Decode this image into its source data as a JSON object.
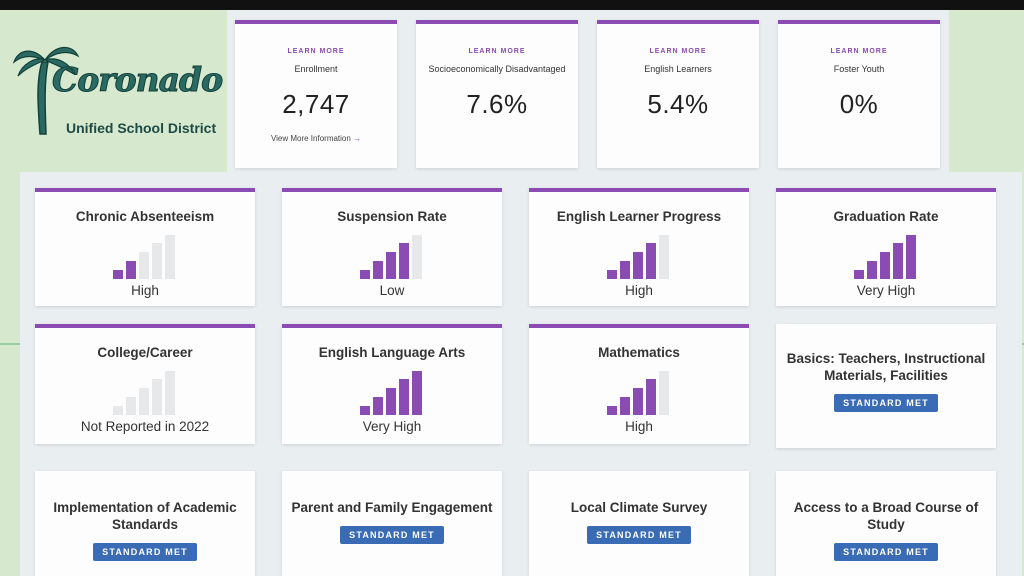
{
  "logo": {
    "script_text": "Coronado",
    "subtitle": "Unified School District"
  },
  "stats": [
    {
      "learn": "LEARN MORE",
      "label": "Enrollment",
      "value": "2,747",
      "link": "View More Information"
    },
    {
      "learn": "LEARN MORE",
      "label": "Socioeconomically Disadvantaged",
      "value": "7.6%"
    },
    {
      "learn": "LEARN MORE",
      "label": "English Learners",
      "value": "5.4%"
    },
    {
      "learn": "LEARN MORE",
      "label": "Foster Youth",
      "value": "0%"
    }
  ],
  "indicators": [
    {
      "title": "Chronic Absenteeism",
      "level": "High",
      "filled": 2
    },
    {
      "title": "Suspension Rate",
      "level": "Low",
      "filled": 4
    },
    {
      "title": "English Learner Progress",
      "level": "High",
      "filled": 4
    },
    {
      "title": "Graduation Rate",
      "level": "Very High",
      "filled": 5
    },
    {
      "title": "College/Career",
      "level": "Not Reported in 2022",
      "filled": 0
    },
    {
      "title": "English Language Arts",
      "level": "Very High",
      "filled": 5
    },
    {
      "title": "Mathematics",
      "level": "High",
      "filled": 4
    }
  ],
  "standards": [
    {
      "title": "Basics: Teachers, Instructional Materials, Facilities",
      "badge": "STANDARD MET"
    },
    {
      "title": "Implementation of Academic Standards",
      "badge": "STANDARD MET"
    },
    {
      "title": "Parent and Family Engagement",
      "badge": "STANDARD MET"
    },
    {
      "title": "Local Climate Survey",
      "badge": "STANDARD MET"
    },
    {
      "title": "Access to a Broad Course of Study",
      "badge": "STANDARD MET"
    }
  ],
  "colors": {
    "accent_purple": "#8a4bb2",
    "bar_empty": "#e6e8ea",
    "badge_blue": "#3a6bb5",
    "page_green": "#d6e9cf"
  }
}
